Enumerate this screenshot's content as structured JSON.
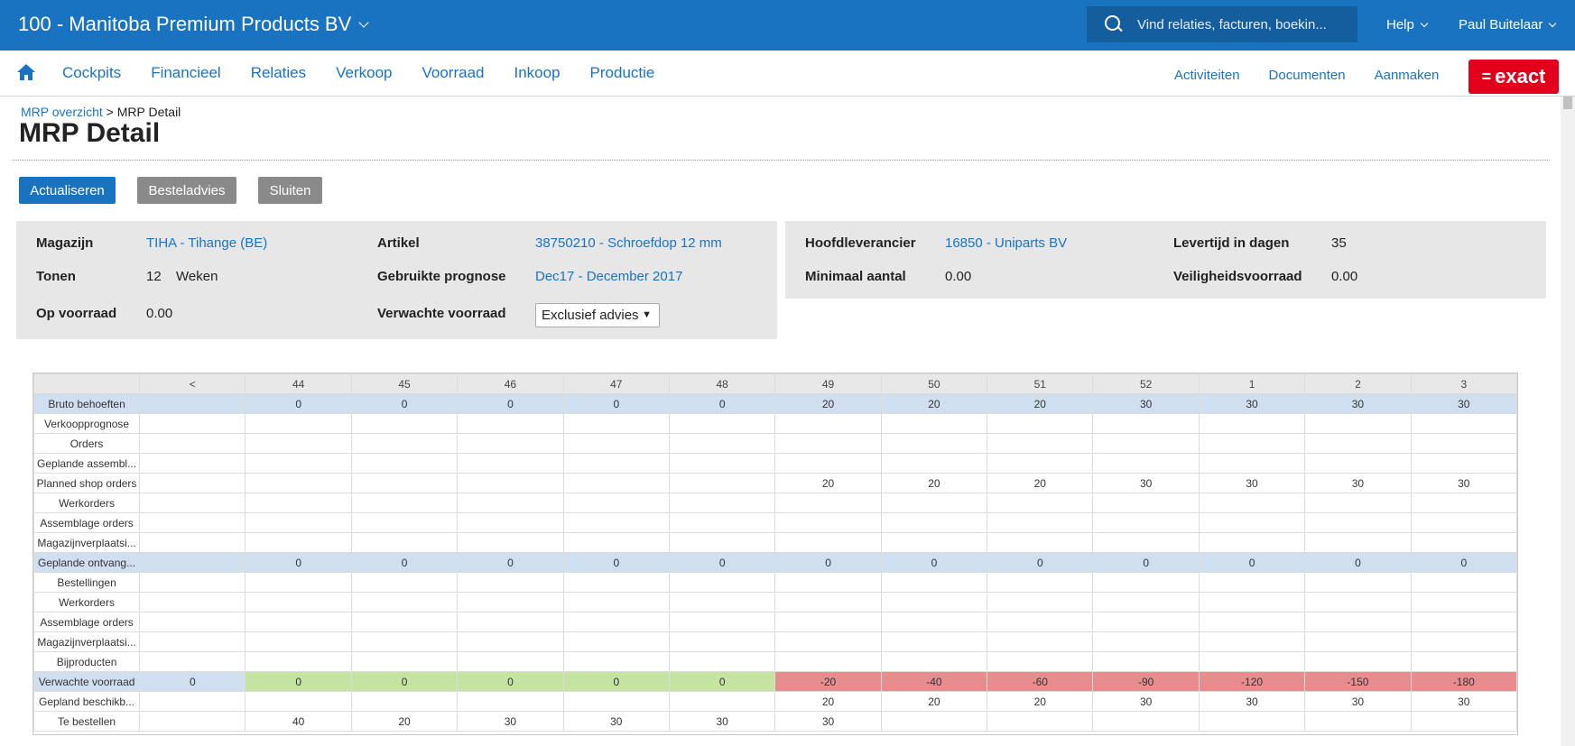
{
  "topbar": {
    "company": "100 - Manitoba Premium Products BV",
    "search_placeholder": "Vind relaties, facturen, boekin...",
    "help": "Help",
    "user": "Paul Buitelaar"
  },
  "nav": {
    "main": [
      "Cockpits",
      "Financieel",
      "Relaties",
      "Verkoop",
      "Voorraad",
      "Inkoop",
      "Productie"
    ],
    "right": [
      "Activiteiten",
      "Documenten",
      "Aanmaken"
    ],
    "logo_symbol": "=",
    "logo_text": "exact"
  },
  "breadcrumb": {
    "parent": "MRP overzicht",
    "separator": " > ",
    "current": "MRP Detail"
  },
  "page_title": "MRP Detail",
  "buttons": {
    "actualiseren": "Actualiseren",
    "besteladvies": "Besteladvies",
    "sluiten": "Sluiten"
  },
  "info_left": {
    "magazijn_label": "Magazijn",
    "magazijn_value": "TIHA - Tihange (BE)",
    "artikel_label": "Artikel",
    "artikel_value": "38750210 - Schroefdop 12 mm",
    "tonen_label": "Tonen",
    "tonen_value": "12",
    "tonen_unit": "Weken",
    "prognose_label": "Gebruikte prognose",
    "prognose_value": "Dec17 - December 2017",
    "opvoorraad_label": "Op voorraad",
    "opvoorraad_value": "0.00",
    "verwacht_label": "Verwachte voorraad",
    "verwacht_select": "Exclusief advies"
  },
  "info_right": {
    "hoofdlev_label": "Hoofdleverancier",
    "hoofdlev_value": "16850 - Uniparts BV",
    "levertijd_label": "Levertijd in dagen",
    "levertijd_value": "35",
    "minimaal_label": "Minimaal aantal",
    "minimaal_value": "0.00",
    "veiligheid_label": "Veiligheidsvoorraad",
    "veiligheid_value": "0.00"
  },
  "mrp": {
    "columns": [
      "<",
      "44",
      "45",
      "46",
      "47",
      "48",
      "49",
      "50",
      "51",
      "52",
      "1",
      "2",
      "3"
    ],
    "rows": [
      {
        "label": "Bruto behoeften",
        "style": "hl",
        "cells": [
          "",
          "0",
          "0",
          "0",
          "0",
          "0",
          "20",
          "20",
          "20",
          "30",
          "30",
          "30",
          "30"
        ]
      },
      {
        "label": "Verkoopprognose",
        "style": "",
        "cells": [
          "",
          "",
          "",
          "",
          "",
          "",
          "",
          "",
          "",
          "",
          "",
          "",
          ""
        ]
      },
      {
        "label": "Orders",
        "style": "",
        "cells": [
          "",
          "",
          "",
          "",
          "",
          "",
          "",
          "",
          "",
          "",
          "",
          "",
          ""
        ]
      },
      {
        "label": "Geplande assembl...",
        "style": "",
        "cells": [
          "",
          "",
          "",
          "",
          "",
          "",
          "",
          "",
          "",
          "",
          "",
          "",
          ""
        ]
      },
      {
        "label": "Planned shop orders",
        "style": "",
        "cells": [
          "",
          "",
          "",
          "",
          "",
          "",
          "20",
          "20",
          "20",
          "30",
          "30",
          "30",
          "30"
        ]
      },
      {
        "label": "Werkorders",
        "style": "",
        "cells": [
          "",
          "",
          "",
          "",
          "",
          "",
          "",
          "",
          "",
          "",
          "",
          "",
          ""
        ]
      },
      {
        "label": "Assemblage orders",
        "style": "",
        "cells": [
          "",
          "",
          "",
          "",
          "",
          "",
          "",
          "",
          "",
          "",
          "",
          "",
          ""
        ]
      },
      {
        "label": "Magazijnverplaatsi...",
        "style": "",
        "cells": [
          "",
          "",
          "",
          "",
          "",
          "",
          "",
          "",
          "",
          "",
          "",
          "",
          ""
        ]
      },
      {
        "label": "Geplande ontvang...",
        "style": "hl",
        "cells": [
          "",
          "0",
          "0",
          "0",
          "0",
          "0",
          "0",
          "0",
          "0",
          "0",
          "0",
          "0",
          "0"
        ]
      },
      {
        "label": "Bestellingen",
        "style": "",
        "cells": [
          "",
          "",
          "",
          "",
          "",
          "",
          "",
          "",
          "",
          "",
          "",
          "",
          ""
        ]
      },
      {
        "label": "Werkorders",
        "style": "",
        "cells": [
          "",
          "",
          "",
          "",
          "",
          "",
          "",
          "",
          "",
          "",
          "",
          "",
          ""
        ]
      },
      {
        "label": "Assemblage orders",
        "style": "",
        "cells": [
          "",
          "",
          "",
          "",
          "",
          "",
          "",
          "",
          "",
          "",
          "",
          "",
          ""
        ]
      },
      {
        "label": "Magazijnverplaatsi...",
        "style": "",
        "cells": [
          "",
          "",
          "",
          "",
          "",
          "",
          "",
          "",
          "",
          "",
          "",
          "",
          ""
        ]
      },
      {
        "label": "Bijproducten",
        "style": "",
        "cells": [
          "",
          "",
          "",
          "",
          "",
          "",
          "",
          "",
          "",
          "",
          "",
          "",
          ""
        ]
      },
      {
        "label": "Verwachte voorraad",
        "style": "stock",
        "cells": [
          "0",
          "0",
          "0",
          "0",
          "0",
          "0",
          "-20",
          "-40",
          "-60",
          "-90",
          "-120",
          "-150",
          "-180"
        ]
      },
      {
        "label": "Gepland beschikb...",
        "style": "",
        "cells": [
          "",
          "",
          "",
          "",
          "",
          "",
          "20",
          "20",
          "20",
          "30",
          "30",
          "30",
          "30"
        ]
      },
      {
        "label": "Te bestellen",
        "style": "",
        "cells": [
          "",
          "40",
          "20",
          "30",
          "30",
          "30",
          "30",
          "",
          "",
          "",
          "",
          "",
          ""
        ]
      }
    ]
  },
  "colors": {
    "brand_blue": "#1a73c0",
    "logo_red": "#e2001a",
    "positive": "#c5e3a1",
    "negative": "#e78d8d",
    "highlight": "#cfdff0"
  }
}
